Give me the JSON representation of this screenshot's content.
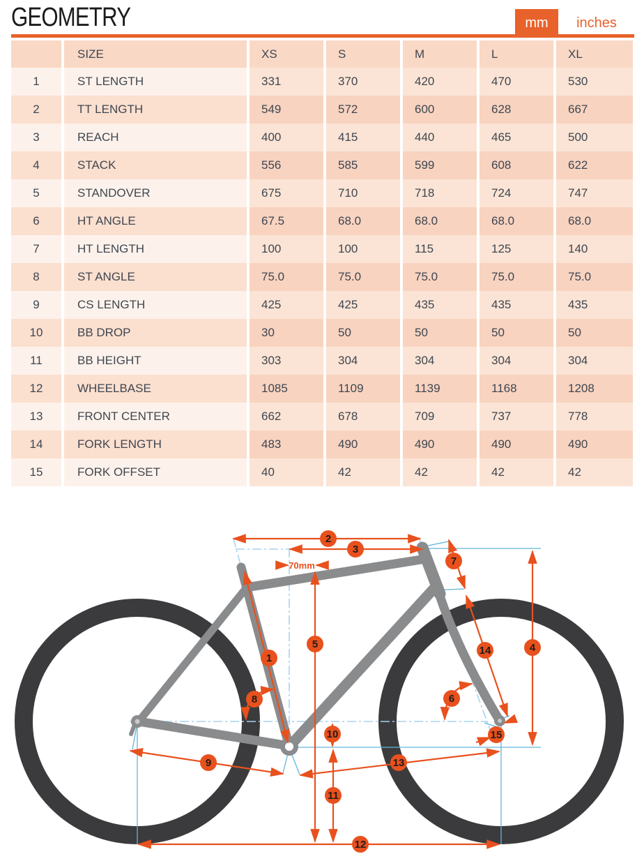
{
  "header": {
    "title": "GEOMETRY",
    "unit_mm": "mm",
    "unit_inches": "inches"
  },
  "table": {
    "columns": [
      "",
      "SIZE",
      "XS",
      "S",
      "M",
      "L",
      "XL"
    ],
    "rows": [
      {
        "num": "1",
        "label": "ST LENGTH",
        "values": [
          "331",
          "370",
          "420",
          "470",
          "530"
        ]
      },
      {
        "num": "2",
        "label": "TT LENGTH",
        "values": [
          "549",
          "572",
          "600",
          "628",
          "667"
        ]
      },
      {
        "num": "3",
        "label": "REACH",
        "values": [
          "400",
          "415",
          "440",
          "465",
          "500"
        ]
      },
      {
        "num": "4",
        "label": "STACK",
        "values": [
          "556",
          "585",
          "599",
          "608",
          "622"
        ]
      },
      {
        "num": "5",
        "label": "STANDOVER",
        "values": [
          "675",
          "710",
          "718",
          "724",
          "747"
        ]
      },
      {
        "num": "6",
        "label": "HT ANGLE",
        "values": [
          "67.5",
          "68.0",
          "68.0",
          "68.0",
          "68.0"
        ]
      },
      {
        "num": "7",
        "label": "HT LENGTH",
        "values": [
          "100",
          "100",
          "115",
          "125",
          "140"
        ]
      },
      {
        "num": "8",
        "label": "ST ANGLE",
        "values": [
          "75.0",
          "75.0",
          "75.0",
          "75.0",
          "75.0"
        ]
      },
      {
        "num": "9",
        "label": "CS LENGTH",
        "values": [
          "425",
          "425",
          "435",
          "435",
          "435"
        ]
      },
      {
        "num": "10",
        "label": "BB DROP",
        "values": [
          "30",
          "50",
          "50",
          "50",
          "50"
        ]
      },
      {
        "num": "11",
        "label": "BB HEIGHT",
        "values": [
          "303",
          "304",
          "304",
          "304",
          "304"
        ]
      },
      {
        "num": "12",
        "label": "WHEELBASE",
        "values": [
          "1085",
          "1109",
          "1139",
          "1168",
          "1208"
        ]
      },
      {
        "num": "13",
        "label": "FRONT CENTER",
        "values": [
          "662",
          "678",
          "709",
          "737",
          "778"
        ]
      },
      {
        "num": "14",
        "label": "FORK LENGTH",
        "values": [
          "483",
          "490",
          "490",
          "490",
          "490"
        ]
      },
      {
        "num": "15",
        "label": "FORK OFFSET",
        "values": [
          "40",
          "42",
          "42",
          "42",
          "42"
        ]
      }
    ]
  },
  "diagram": {
    "label_70mm": "70mm",
    "markers": [
      "1",
      "2",
      "3",
      "4",
      "5",
      "6",
      "7",
      "8",
      "9",
      "10",
      "11",
      "12",
      "13",
      "14",
      "15"
    ]
  },
  "colors": {
    "accent_orange": "#E8511D",
    "toggle_orange": "#E8622B",
    "construction_blue": "#64B3DC",
    "dashdot_blue": "#A6D4EF",
    "frame_gray": "#8A8B8D",
    "wheel_dark": "#3B3B3D",
    "table_text": "#3F4650",
    "row_light_label": "#FDF2EB",
    "row_light_value": "#FBE4D5",
    "row_dark_label": "#FBDFCF",
    "row_dark_value": "#F8D3C0",
    "header_row": "#F9D8C5"
  }
}
